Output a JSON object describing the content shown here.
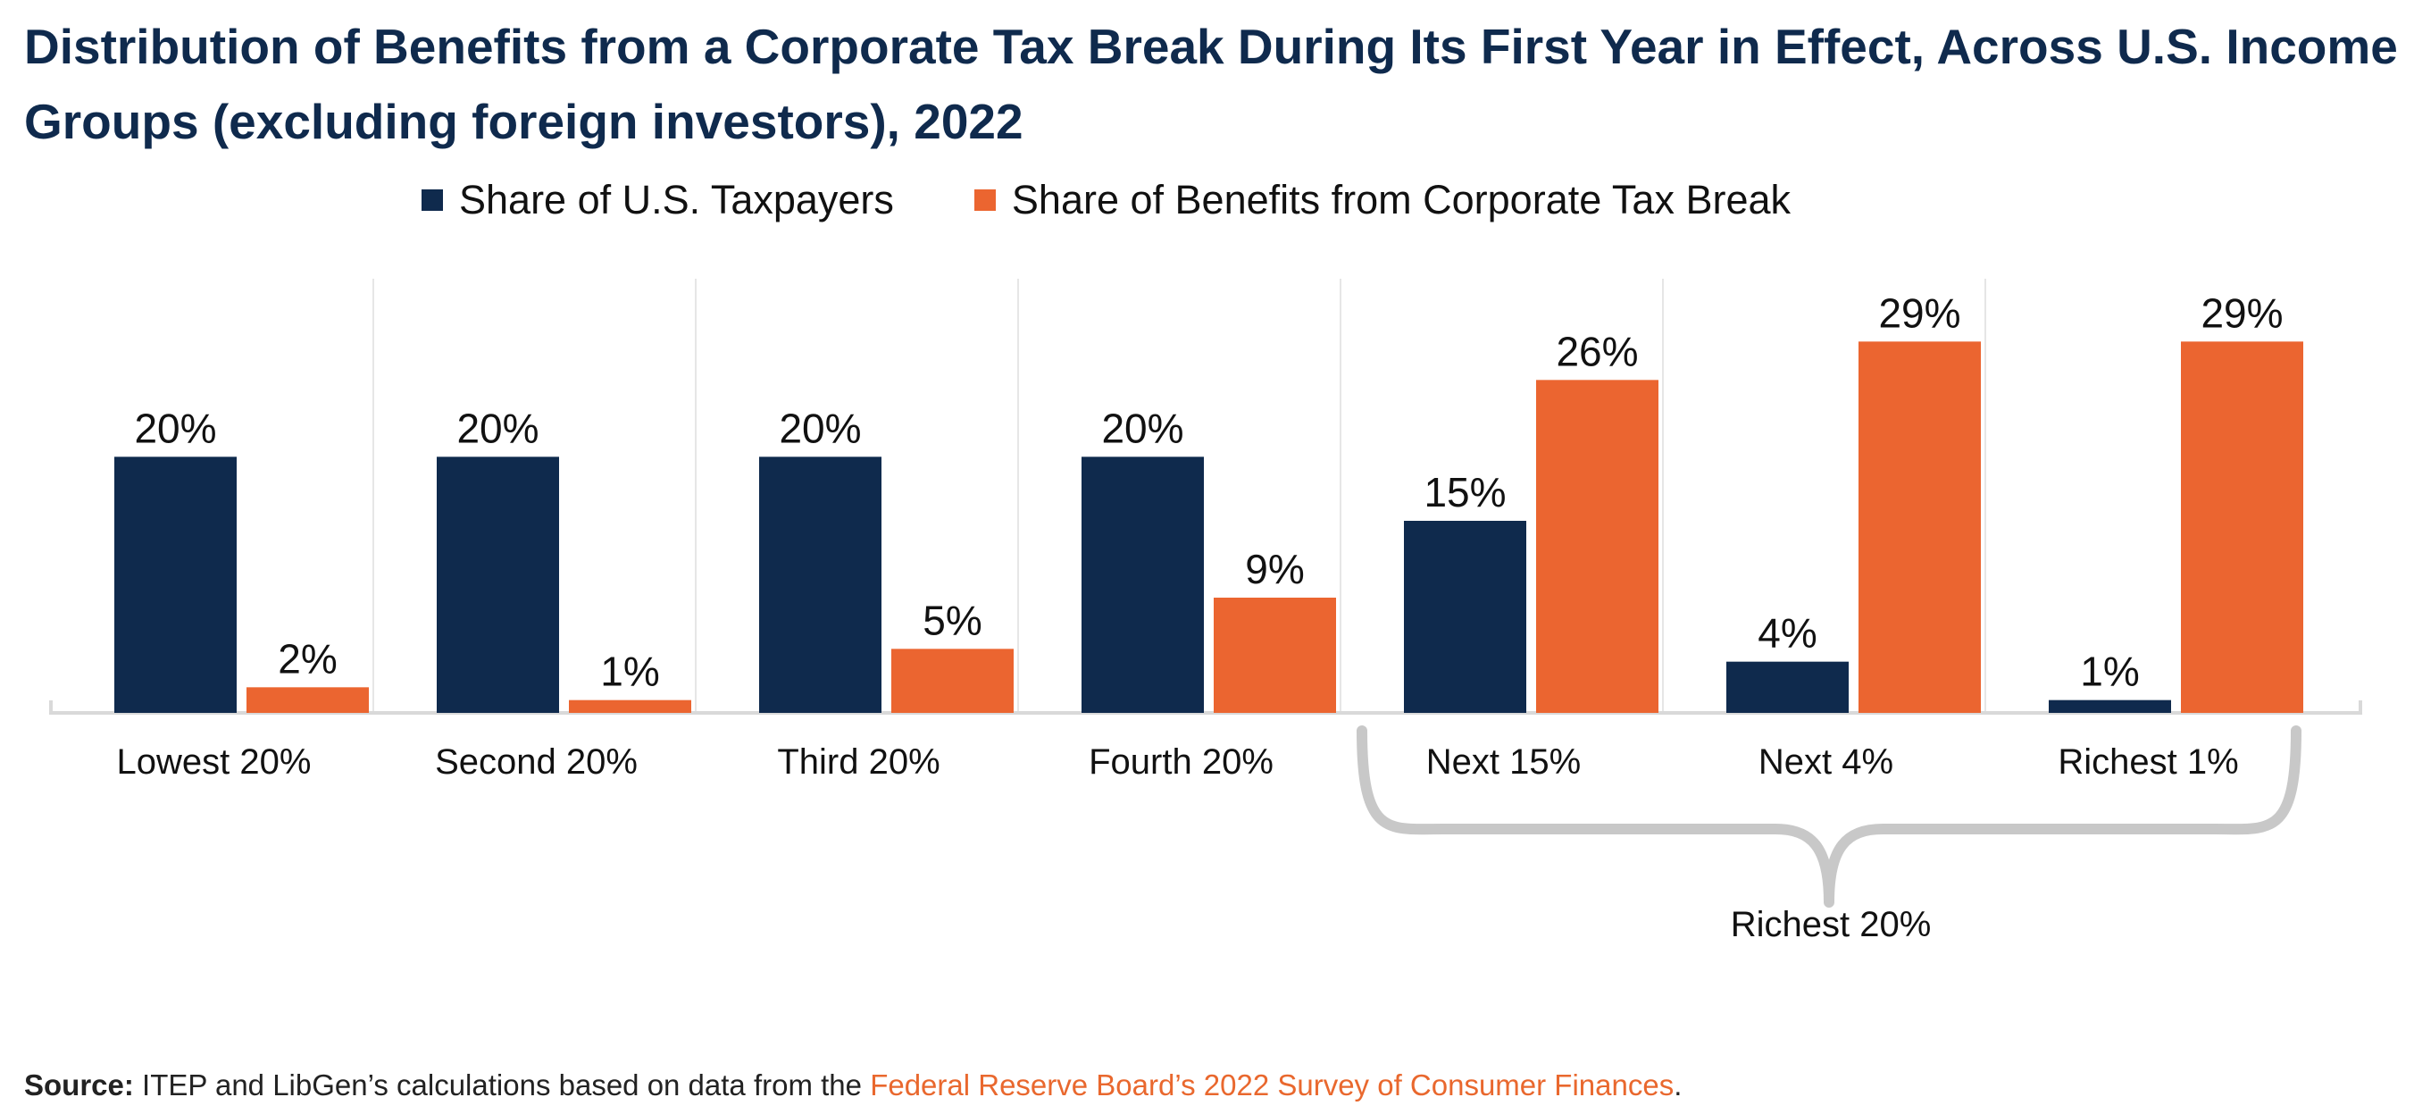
{
  "title": "Distribution of Benefits from a Corporate Tax Break During Its First Year in Effect, Across U.S. Income Groups (excluding foreign investors), 2022",
  "colors": {
    "taxpayers": "#0f2a4d",
    "benefits": "#eb6530",
    "divider": "#e6e6e6",
    "brace": "#c8c8c8",
    "title": "#0f2a4d"
  },
  "chart_data": {
    "type": "bar",
    "title": "Distribution of Benefits from a Corporate Tax Break During Its First Year in Effect, Across U.S. Income Groups (excluding foreign investors), 2022",
    "xlabel": "",
    "ylabel": "",
    "ylim": [
      0,
      30
    ],
    "grid": false,
    "legend_position": "top",
    "categories": [
      "Lowest 20%",
      "Second 20%",
      "Third 20%",
      "Fourth 20%",
      "Next 15%",
      "Next 4%",
      "Richest 1%"
    ],
    "series": [
      {
        "name": "Share of U.S. Taxpayers",
        "values": [
          20,
          20,
          20,
          20,
          15,
          4,
          1
        ],
        "labels": [
          "20%",
          "20%",
          "20%",
          "20%",
          "15%",
          "4%",
          "1%"
        ]
      },
      {
        "name": "Share of Benefits from Corporate Tax Break",
        "values": [
          2,
          1,
          5,
          9,
          26,
          29,
          29
        ],
        "labels": [
          "2%",
          "1%",
          "5%",
          "9%",
          "26%",
          "29%",
          "29%"
        ]
      }
    ],
    "annotations": [
      {
        "text": "Richest 20%",
        "spans": [
          "Next 15%",
          "Next 4%",
          "Richest 1%"
        ]
      }
    ]
  },
  "source": {
    "label": "Source:",
    "text": "ITEP and LibGen’s calculations based on data from the",
    "link_text": "Federal Reserve Board’s 2022 Survey of Consumer Finances",
    "end": "."
  }
}
